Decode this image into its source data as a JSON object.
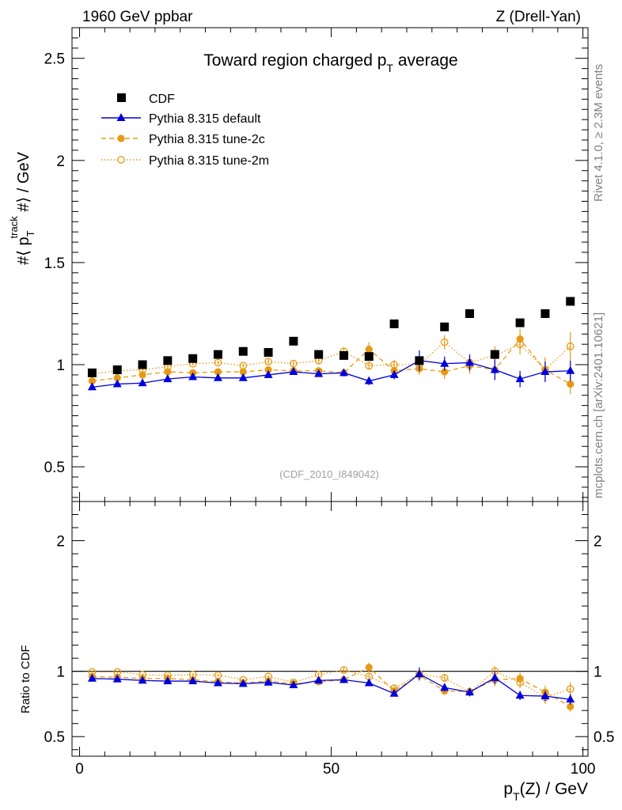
{
  "header": {
    "left": "1960 GeV ppbar",
    "right": "Z (Drell-Yan)"
  },
  "side": {
    "rivet": "Rivet 4.1.0, ≥ 2.3M events",
    "mcplots": "mcplots.cern.ch [arXiv:2401.10621]"
  },
  "chart_data": [
    {
      "type": "scatter",
      "panel": "main",
      "title_main": "Toward region charged p",
      "title_sub": "T",
      "title_rest": " average",
      "ylabel": {
        "pre": "#⟨ p",
        "sub": "T",
        "sup": "track",
        "post": " #⟩ / GeV"
      },
      "watermark": "(CDF_2010_I849042)",
      "xlim": [
        -1.5,
        101
      ],
      "ylim": [
        0.33,
        2.65
      ],
      "yticks": [
        {
          "v": 0.5,
          "label": "0.5"
        },
        {
          "v": 1,
          "label": "1"
        },
        {
          "v": 1.5,
          "label": "1.5"
        },
        {
          "v": 2,
          "label": "2"
        },
        {
          "v": 2.5,
          "label": "2.5"
        }
      ],
      "x": [
        2.5,
        7.5,
        12.5,
        17.5,
        22.5,
        27.5,
        32.5,
        37.5,
        42.5,
        47.5,
        52.5,
        57.5,
        62.5,
        67.5,
        72.5,
        77.5,
        82.5,
        87.5,
        92.5,
        97.5
      ],
      "series": [
        {
          "name": "CDF",
          "style": "data",
          "color": "#000000",
          "values": [
            0.96,
            0.975,
            1.0,
            1.02,
            1.03,
            1.05,
            1.065,
            1.06,
            1.115,
            1.05,
            1.045,
            1.04,
            1.2,
            1.02,
            1.185,
            1.25,
            1.05,
            1.205,
            1.25,
            1.31
          ]
        },
        {
          "name": "Pythia 8.315 default",
          "style": "solid-triangle",
          "color": "#0000dd",
          "values": [
            0.89,
            0.905,
            0.91,
            0.93,
            0.94,
            0.935,
            0.935,
            0.95,
            0.965,
            0.955,
            0.96,
            0.92,
            0.95,
            1.02,
            1.005,
            1.01,
            0.975,
            0.93,
            0.965,
            0.97
          ],
          "errors": [
            0.008,
            0.008,
            0.008,
            0.009,
            0.009,
            0.01,
            0.01,
            0.012,
            0.013,
            0.015,
            0.017,
            0.02,
            0.022,
            0.05,
            0.035,
            0.04,
            0.05,
            0.04,
            0.05,
            0.05
          ]
        },
        {
          "name": "Pythia 8.315 tune-2c",
          "style": "dashed-filled-circle",
          "color": "#e69a12",
          "values": [
            0.92,
            0.935,
            0.95,
            0.965,
            0.96,
            0.965,
            0.965,
            0.975,
            0.97,
            0.97,
            0.96,
            1.075,
            0.97,
            0.98,
            0.965,
            0.995,
            0.975,
            1.125,
            0.975,
            0.905
          ],
          "errors": [
            0.008,
            0.008,
            0.008,
            0.009,
            0.009,
            0.01,
            0.01,
            0.012,
            0.013,
            0.015,
            0.017,
            0.035,
            0.025,
            0.03,
            0.035,
            0.04,
            0.05,
            0.05,
            0.06,
            0.05
          ]
        },
        {
          "name": "Pythia 8.315 tune-2m",
          "style": "dotted-open-circle",
          "color": "#e69a12",
          "values": [
            0.955,
            0.97,
            0.975,
            0.99,
            1.005,
            1.01,
            0.995,
            1.015,
            1.005,
            1.02,
            1.065,
            0.995,
            1.0,
            1.0,
            1.11,
            1.01,
            1.045,
            1.1,
            0.975,
            1.09
          ],
          "errors": [
            0.008,
            0.008,
            0.008,
            0.009,
            0.009,
            0.01,
            0.01,
            0.012,
            0.013,
            0.015,
            0.02,
            0.02,
            0.022,
            0.03,
            0.035,
            0.04,
            0.045,
            0.05,
            0.06,
            0.07
          ]
        }
      ]
    },
    {
      "type": "scatter",
      "panel": "ratio",
      "ylabel": "Ratio to CDF",
      "xlabel": {
        "pre": "p",
        "sub": "T",
        "post": "(Z) / GeV"
      },
      "xlim": [
        -1.5,
        101
      ],
      "ylim": [
        0.35,
        2.3
      ],
      "reference": 1,
      "yticks": [
        {
          "v": 0.5,
          "label": "0.5"
        },
        {
          "v": 1,
          "label": "1"
        },
        {
          "v": 2,
          "label": "2"
        }
      ],
      "xticks": [
        {
          "v": 0,
          "label": "0"
        },
        {
          "v": 50,
          "label": "50"
        },
        {
          "v": 100,
          "label": "100"
        }
      ],
      "x": [
        2.5,
        7.5,
        12.5,
        17.5,
        22.5,
        27.5,
        32.5,
        37.5,
        42.5,
        47.5,
        52.5,
        57.5,
        62.5,
        67.5,
        72.5,
        77.5,
        82.5,
        87.5,
        92.5,
        97.5
      ],
      "series": [
        {
          "name": "Pythia 8.315 default",
          "values": [
            0.945,
            0.94,
            0.93,
            0.925,
            0.925,
            0.91,
            0.905,
            0.915,
            0.895,
            0.93,
            0.935,
            0.91,
            0.83,
            0.98,
            0.875,
            0.84,
            0.95,
            0.815,
            0.81,
            0.785
          ],
          "errors": [
            0.01,
            0.01,
            0.01,
            0.01,
            0.01,
            0.01,
            0.011,
            0.012,
            0.013,
            0.015,
            0.017,
            0.02,
            0.02,
            0.05,
            0.03,
            0.03,
            0.05,
            0.035,
            0.04,
            0.04
          ]
        },
        {
          "name": "Pythia 8.315 tune-2c",
          "values": [
            0.96,
            0.955,
            0.945,
            0.945,
            0.935,
            0.92,
            0.91,
            0.925,
            0.905,
            0.92,
            0.935,
            1.03,
            0.85,
            0.97,
            0.85,
            0.845,
            0.935,
            0.945,
            0.84,
            0.73
          ],
          "errors": [
            0.01,
            0.01,
            0.01,
            0.01,
            0.01,
            0.01,
            0.011,
            0.012,
            0.013,
            0.015,
            0.017,
            0.035,
            0.02,
            0.03,
            0.03,
            0.03,
            0.05,
            0.045,
            0.05,
            0.04
          ]
        },
        {
          "name": "Pythia 8.315 tune-2m",
          "values": [
            0.995,
            0.995,
            0.975,
            0.97,
            0.975,
            0.97,
            0.935,
            0.96,
            0.915,
            0.975,
            1.01,
            0.96,
            0.87,
            0.98,
            0.95,
            0.84,
            1.0,
            0.915,
            0.8,
            0.865
          ],
          "errors": [
            0.01,
            0.01,
            0.01,
            0.01,
            0.01,
            0.01,
            0.011,
            0.012,
            0.013,
            0.015,
            0.02,
            0.02,
            0.02,
            0.03,
            0.03,
            0.035,
            0.04,
            0.045,
            0.05,
            0.05
          ]
        }
      ]
    }
  ]
}
